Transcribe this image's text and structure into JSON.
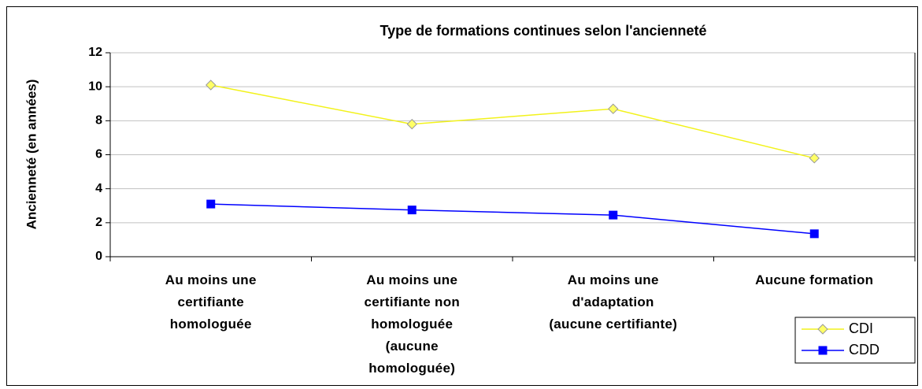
{
  "chart_data": {
    "type": "line",
    "title": "Type de formations continues selon l'ancienneté",
    "y_label": "Ancienneté (en années)",
    "categories": [
      "Au moins une\ncertifiante\nhomologuée",
      "Au moins une\ncertifiante non\nhomologuée\n(aucune\nhomologuée)",
      "Au moins une\nd'adaptation\n(aucune certifiante)",
      "Aucune formation"
    ],
    "series": [
      {
        "name": "CDI",
        "color": "#f2f21a",
        "marker": "diamond",
        "values": [
          10.1,
          7.8,
          8.7,
          5.8
        ]
      },
      {
        "name": "CDD",
        "color": "#0000ff",
        "marker": "square",
        "values": [
          3.1,
          2.75,
          2.45,
          1.35
        ]
      }
    ],
    "ylim": [
      0,
      12
    ],
    "yticks": [
      0,
      2,
      4,
      6,
      8,
      10,
      12
    ],
    "grid": true,
    "legend": "lower right"
  }
}
